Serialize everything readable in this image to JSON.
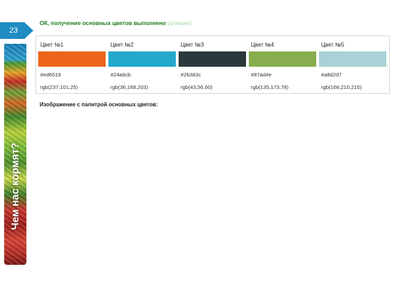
{
  "slide": {
    "number": "23"
  },
  "banner": {
    "title": "Чем нас кормят?"
  },
  "status": {
    "main": "ОК, получение основных цветов выполнено",
    "tail": "успешно!"
  },
  "palette": [
    {
      "title": "Цвет №1",
      "hex": "#ed6519",
      "rgb": "rgb(237,101,25)",
      "color": "#ed6519"
    },
    {
      "title": "Цвет №2",
      "hex": "#24a8cb",
      "rgb": "rgb(36,168,203)",
      "color": "#24a8cb"
    },
    {
      "title": "Цвет №3",
      "hex": "#2b383c",
      "rgb": "rgb(43,56,60)",
      "color": "#2b383c"
    },
    {
      "title": "Цвет №4",
      "hex": "#87ad4e",
      "rgb": "rgb(135,173,78)",
      "color": "#87ad4e"
    },
    {
      "title": "Цвет №5",
      "hex": "#a8d2d7",
      "rgb": "rgb(168,210,215)",
      "color": "#a8d2d7"
    }
  ],
  "caption": "Изображение с палитрой основных цветов:",
  "colors": {
    "badge": "#1f8cc2",
    "ok_text": "#1c7d1c",
    "ok_tail": "#9fd4a0"
  }
}
